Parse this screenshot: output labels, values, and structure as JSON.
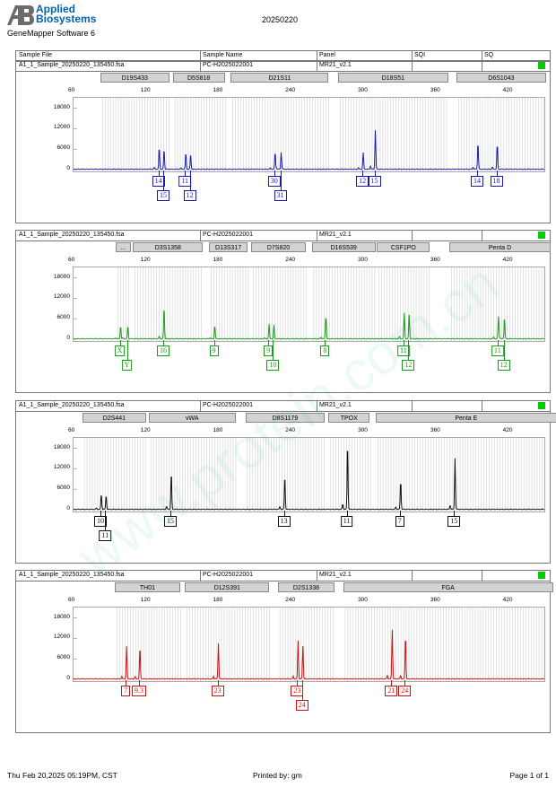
{
  "header": {
    "logo_line1": "Applied",
    "logo_line2": "Biosystems",
    "software": "GeneMapper Software 6",
    "run_date": "20250220"
  },
  "columns": [
    "Sample File",
    "Sample Name",
    "Panel",
    "SQI",
    "SQ"
  ],
  "footer": {
    "printed_at": "Thu Feb 20,2025 05:19PM, CST",
    "printed_by": "Printed by: gm",
    "page": "Page 1 of 1"
  },
  "watermark": "www.protein.com.cn",
  "chart_data": [
    {
      "type": "line",
      "color": "#1a1aaa",
      "sample_file": "A1_1_Sample_20250220_135450.fsa",
      "sample_name": "PC-H2025022001",
      "panel": "MR21_v2.1",
      "xlim": [
        60,
        450
      ],
      "ylim": [
        0,
        20000
      ],
      "xticks": [
        "60",
        "120",
        "180",
        "240",
        "300",
        "360",
        "420"
      ],
      "yticks": [
        "0",
        "6000",
        "12000",
        "18000"
      ],
      "markers": [
        {
          "name": "D19S433",
          "start": 83,
          "end": 140
        },
        {
          "name": "D5S818",
          "start": 143,
          "end": 186
        },
        {
          "name": "D21S11",
          "start": 191,
          "end": 272
        },
        {
          "name": "D18S51",
          "start": 280,
          "end": 371
        },
        {
          "name": "D6S1043",
          "start": 378,
          "end": 452
        }
      ],
      "peaks": [
        {
          "x": 131,
          "h": 6000
        },
        {
          "x": 135,
          "h": 6000
        },
        {
          "x": 153,
          "h": 4500
        },
        {
          "x": 157,
          "h": 4500
        },
        {
          "x": 227,
          "h": 5000
        },
        {
          "x": 232,
          "h": 5000
        },
        {
          "x": 300,
          "h": 4800
        },
        {
          "x": 310,
          "h": 11500
        },
        {
          "x": 395,
          "h": 8000
        },
        {
          "x": 411,
          "h": 7500
        }
      ],
      "alleles": [
        {
          "x": 131,
          "label": "14",
          "row": 1
        },
        {
          "x": 135,
          "label": "15",
          "row": 2
        },
        {
          "x": 153,
          "label": "11",
          "row": 1
        },
        {
          "x": 157,
          "label": "12",
          "row": 2
        },
        {
          "x": 227,
          "label": "30",
          "row": 1
        },
        {
          "x": 232,
          "label": "31",
          "row": 2
        },
        {
          "x": 300,
          "label": "12",
          "row": 1
        },
        {
          "x": 310,
          "label": "15",
          "row": 1
        },
        {
          "x": 395,
          "label": "14",
          "row": 1
        },
        {
          "x": 411,
          "label": "18",
          "row": 1
        }
      ]
    },
    {
      "type": "line",
      "color": "#1a9a1a",
      "sample_file": "A1_1_Sample_20250220_135450.fsa",
      "sample_name": "PC-H2025022001",
      "panel": "MR21_v2.1",
      "xlim": [
        60,
        450
      ],
      "ylim": [
        0,
        20000
      ],
      "xticks": [
        "60",
        "120",
        "180",
        "240",
        "300",
        "360",
        "420"
      ],
      "yticks": [
        "0",
        "6000",
        "12000",
        "18000"
      ],
      "markers": [
        {
          "name": "...",
          "start": 96,
          "end": 108
        },
        {
          "name": "D3S1358",
          "start": 110,
          "end": 168
        },
        {
          "name": "D13S317",
          "start": 173,
          "end": 205
        },
        {
          "name": "D7S820",
          "start": 208,
          "end": 253
        },
        {
          "name": "D16S539",
          "start": 258,
          "end": 311
        },
        {
          "name": "CSF1PO",
          "start": 312,
          "end": 356
        },
        {
          "name": "Penta D",
          "start": 372,
          "end": 456
        }
      ],
      "peaks": [
        {
          "x": 99,
          "h": 3800
        },
        {
          "x": 105,
          "h": 3800
        },
        {
          "x": 135,
          "h": 9500
        },
        {
          "x": 177,
          "h": 4000
        },
        {
          "x": 222,
          "h": 4000
        },
        {
          "x": 226,
          "h": 4000
        },
        {
          "x": 269,
          "h": 7000
        },
        {
          "x": 334,
          "h": 7000
        },
        {
          "x": 338,
          "h": 7000
        },
        {
          "x": 412,
          "h": 6500
        },
        {
          "x": 417,
          "h": 6500
        }
      ],
      "alleles": [
        {
          "x": 99,
          "label": "X",
          "row": 1
        },
        {
          "x": 105,
          "label": "Y",
          "row": 2
        },
        {
          "x": 135,
          "label": "16",
          "row": 1
        },
        {
          "x": 177,
          "label": "9",
          "row": 1
        },
        {
          "x": 222,
          "label": "9",
          "row": 1
        },
        {
          "x": 226,
          "label": "10",
          "row": 2
        },
        {
          "x": 269,
          "label": "8",
          "row": 1
        },
        {
          "x": 334,
          "label": "11",
          "row": 1
        },
        {
          "x": 338,
          "label": "12",
          "row": 2
        },
        {
          "x": 412,
          "label": "11",
          "row": 1
        },
        {
          "x": 417,
          "label": "12",
          "row": 2
        }
      ]
    },
    {
      "type": "line",
      "color": "#111111",
      "sample_file": "A1_1_Sample_20250220_135450.fsa",
      "sample_name": "PC-H2025022001",
      "panel": "MR21_v2.1",
      "xlim": [
        60,
        450
      ],
      "ylim": [
        0,
        20000
      ],
      "xticks": [
        "60",
        "120",
        "180",
        "240",
        "300",
        "360",
        "420"
      ],
      "yticks": [
        "0",
        "6000",
        "12000",
        "18000"
      ],
      "markers": [
        {
          "name": "D2S441",
          "start": 68,
          "end": 121
        },
        {
          "name": "vWA",
          "start": 123,
          "end": 195
        },
        {
          "name": "D8S1179",
          "start": 203,
          "end": 269
        },
        {
          "name": "TPOX",
          "start": 272,
          "end": 306
        },
        {
          "name": "Penta E",
          "start": 311,
          "end": 461
        }
      ],
      "peaks": [
        {
          "x": 83,
          "h": 4200
        },
        {
          "x": 87,
          "h": 4200
        },
        {
          "x": 141,
          "h": 11000
        },
        {
          "x": 235,
          "h": 10000
        },
        {
          "x": 287,
          "h": 20000
        },
        {
          "x": 331,
          "h": 8500
        },
        {
          "x": 376,
          "h": 15000
        }
      ],
      "alleles": [
        {
          "x": 83,
          "label": "10",
          "row": 1
        },
        {
          "x": 87,
          "label": "11",
          "row": 2
        },
        {
          "x": 141,
          "label": "15",
          "row": 1
        },
        {
          "x": 235,
          "label": "13",
          "row": 1
        },
        {
          "x": 287,
          "label": "11",
          "row": 1
        },
        {
          "x": 331,
          "label": "7",
          "row": 1
        },
        {
          "x": 376,
          "label": "15",
          "row": 1
        }
      ]
    },
    {
      "type": "line",
      "color": "#cc1111",
      "sample_file": "A1_1_Sample_20250220_135450.fsa",
      "sample_name": "PC-H2025022001",
      "panel": "MR21_v2.1",
      "xlim": [
        60,
        450
      ],
      "ylim": [
        0,
        20000
      ],
      "xticks": [
        "60",
        "120",
        "180",
        "240",
        "300",
        "360",
        "420"
      ],
      "yticks": [
        "0",
        "6000",
        "12000",
        "18000"
      ],
      "markers": [
        {
          "name": "TH01",
          "start": 95,
          "end": 149
        },
        {
          "name": "D12S391",
          "start": 153,
          "end": 223
        },
        {
          "name": "D2S1338",
          "start": 230,
          "end": 277
        },
        {
          "name": "FGA",
          "start": 284,
          "end": 458
        }
      ],
      "peaks": [
        {
          "x": 104,
          "h": 9500
        },
        {
          "x": 115,
          "h": 9500
        },
        {
          "x": 180,
          "h": 10500
        },
        {
          "x": 246,
          "h": 10500
        },
        {
          "x": 250,
          "h": 9700
        },
        {
          "x": 324,
          "h": 14500
        },
        {
          "x": 335,
          "h": 13000
        }
      ],
      "alleles": [
        {
          "x": 104,
          "label": "7",
          "row": 1
        },
        {
          "x": 115,
          "label": "9.3",
          "row": 1
        },
        {
          "x": 180,
          "label": "23",
          "row": 1
        },
        {
          "x": 246,
          "label": "23",
          "row": 1
        },
        {
          "x": 250,
          "label": "24",
          "row": 2
        },
        {
          "x": 324,
          "label": "21",
          "row": 1
        },
        {
          "x": 335,
          "label": "24",
          "row": 1
        }
      ]
    }
  ]
}
